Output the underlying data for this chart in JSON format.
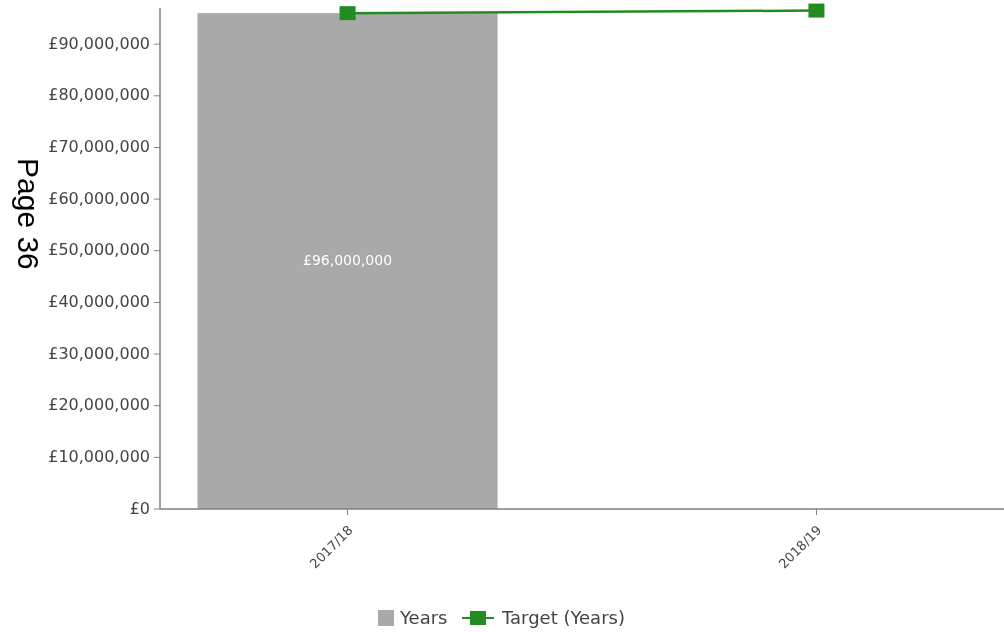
{
  "chart_data": {
    "type": "bar",
    "categories": [
      "2017/18",
      "2018/19"
    ],
    "series": [
      {
        "name": "Years",
        "color": "#a9a9a9",
        "values": [
          96000000,
          null
        ],
        "value_labels": [
          "£96,000,000",
          null
        ]
      },
      {
        "name": "Target (Years)",
        "type": "line",
        "color": "#228b22",
        "values": [
          96000000,
          96500000
        ],
        "marker": "square"
      }
    ],
    "ylim": [
      0,
      97000000
    ],
    "yticks": [
      {
        "value": 0,
        "label": "£0"
      },
      {
        "value": 10000000,
        "label": "£10,000,000"
      },
      {
        "value": 20000000,
        "label": "£20,000,000"
      },
      {
        "value": 30000000,
        "label": "£30,000,000"
      },
      {
        "value": 40000000,
        "label": "£40,000,000"
      },
      {
        "value": 50000000,
        "label": "£50,000,000"
      },
      {
        "value": 60000000,
        "label": "£60,000,000"
      },
      {
        "value": 70000000,
        "label": "£70,000,000"
      },
      {
        "value": 80000000,
        "label": "£80,000,000"
      },
      {
        "value": 90000000,
        "label": "£90,000,000"
      }
    ],
    "annotations": [
      "Page 36"
    ],
    "legend": "bottom",
    "grid": false
  }
}
